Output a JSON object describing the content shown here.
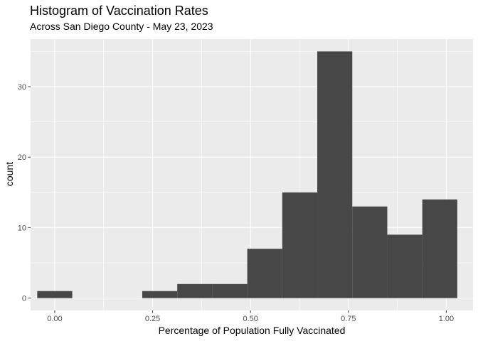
{
  "chart_data": {
    "type": "bar",
    "title": "Histogram of Vaccination Rates",
    "subtitle": "Across San Diego County - May 23, 2023",
    "xlabel": "Percentage of Population Fully Vaccinated",
    "ylabel": "count",
    "x_ticks": [
      "0.00",
      "0.25",
      "0.50",
      "0.75",
      "1.00"
    ],
    "x_tick_values": [
      0,
      0.25,
      0.5,
      0.75,
      1.0
    ],
    "y_ticks": [
      "0",
      "10",
      "20",
      "30"
    ],
    "y_tick_values": [
      0,
      10,
      20,
      30
    ],
    "xlim": [
      -0.0617,
      1.0683
    ],
    "ylim": [
      -1.75,
      36.75
    ],
    "bin_width": 0.0894,
    "bins": [
      {
        "start": -0.0447,
        "end": 0.0447,
        "count": 1
      },
      {
        "start": 0.0447,
        "end": 0.1341,
        "count": 0
      },
      {
        "start": 0.1341,
        "end": 0.2235,
        "count": 0
      },
      {
        "start": 0.2235,
        "end": 0.3129,
        "count": 1
      },
      {
        "start": 0.3129,
        "end": 0.4023,
        "count": 2
      },
      {
        "start": 0.4023,
        "end": 0.4917,
        "count": 2
      },
      {
        "start": 0.4917,
        "end": 0.5811,
        "count": 7
      },
      {
        "start": 0.5811,
        "end": 0.6705,
        "count": 15
      },
      {
        "start": 0.6705,
        "end": 0.7599,
        "count": 35
      },
      {
        "start": 0.7599,
        "end": 0.8493,
        "count": 13
      },
      {
        "start": 0.8493,
        "end": 0.9387,
        "count": 9
      },
      {
        "start": 0.9387,
        "end": 1.0281,
        "count": 14
      }
    ],
    "grid": true,
    "bar_color": "#474747",
    "panel_color": "#ebebeb",
    "grid_color": "#ffffff"
  }
}
